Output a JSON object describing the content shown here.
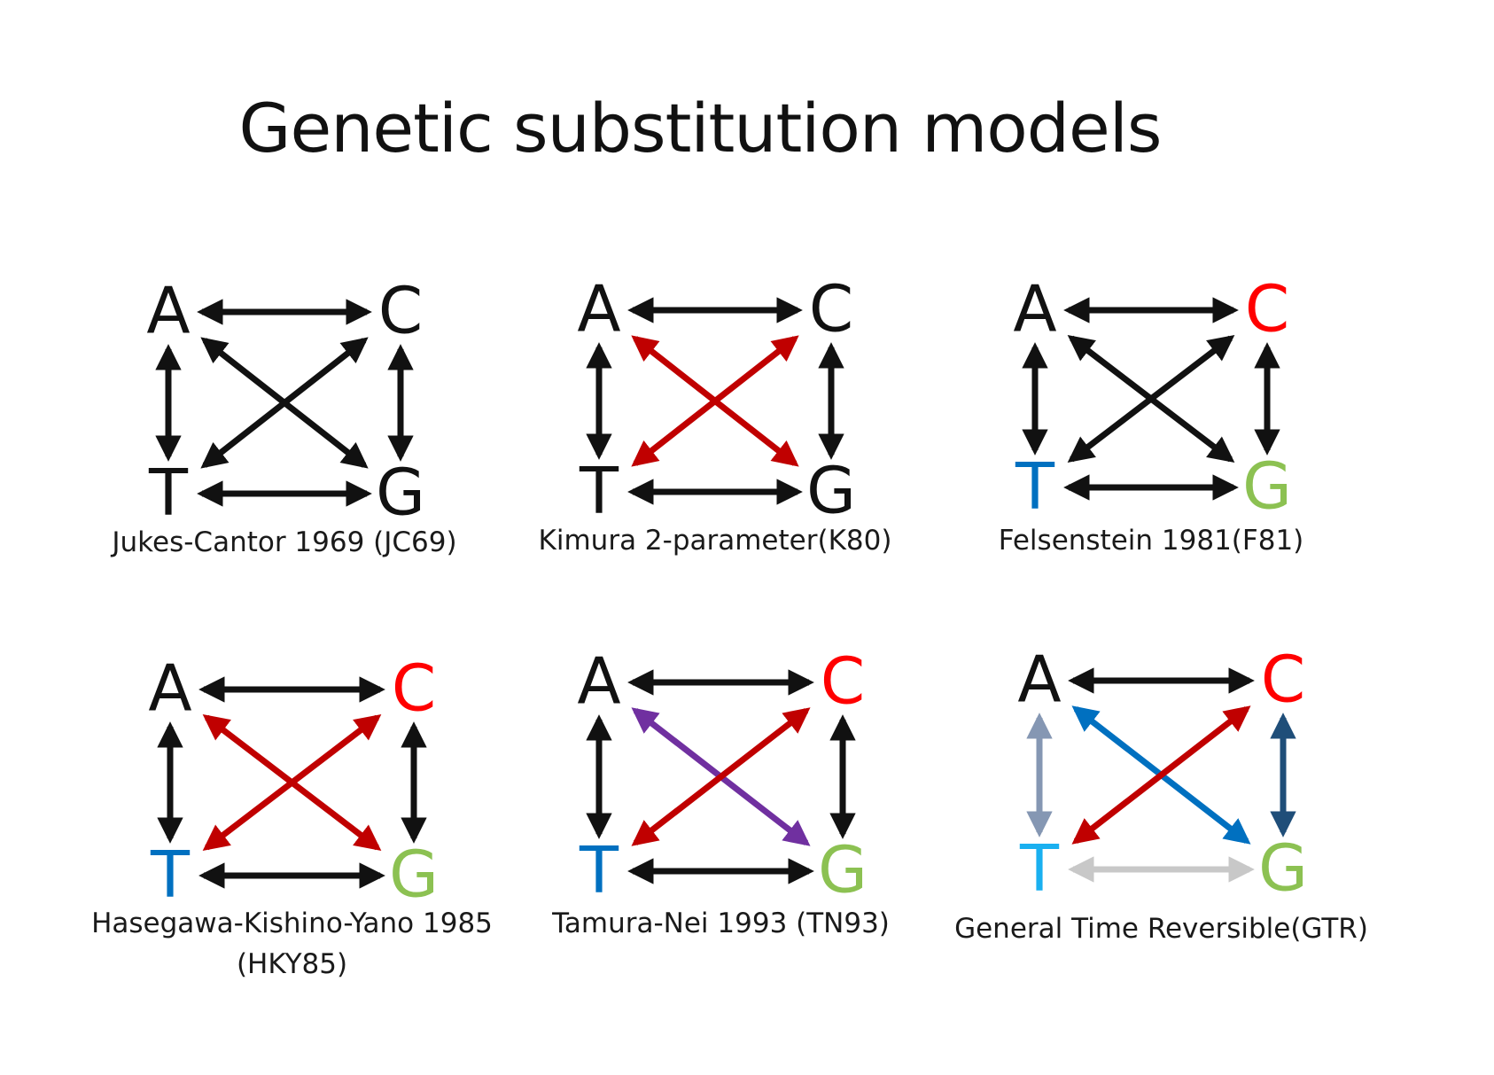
{
  "title": "Genetic substitution models",
  "colors": {
    "black": "#111111",
    "red": "#c00000",
    "bright_red": "#ff0000",
    "purple": "#7030a0",
    "blue": "#0070c0",
    "light_blue": "#1ab0f0",
    "green": "#8cc152",
    "gray_blue": "#8597b3",
    "dark_blue": "#1f4e79",
    "light_gray": "#c8c8c8"
  },
  "models": [
    {
      "id": "jc69",
      "caption": [
        "Jukes-Cantor 1969 (JC69)"
      ],
      "bases": {
        "A": "black",
        "C": "black",
        "T": "black",
        "G": "black"
      },
      "edges": {
        "AC": "black",
        "TG": "black",
        "AT": "black",
        "CG": "black",
        "AG": "black",
        "CT": "black"
      }
    },
    {
      "id": "k80",
      "caption": [
        "Kimura 2-parameter(K80)"
      ],
      "bases": {
        "A": "black",
        "C": "black",
        "T": "black",
        "G": "black"
      },
      "edges": {
        "AC": "black",
        "TG": "black",
        "AT": "black",
        "CG": "black",
        "AG": "red",
        "CT": "red"
      }
    },
    {
      "id": "f81",
      "caption": [
        "Felsenstein 1981(F81)"
      ],
      "bases": {
        "A": "black",
        "C": "bright_red",
        "T": "blue",
        "G": "green"
      },
      "edges": {
        "AC": "black",
        "TG": "black",
        "AT": "black",
        "CG": "black",
        "AG": "black",
        "CT": "black"
      }
    },
    {
      "id": "hky85",
      "caption": [
        "Hasegawa-Kishino-Yano 1985",
        "(HKY85)"
      ],
      "bases": {
        "A": "black",
        "C": "bright_red",
        "T": "blue",
        "G": "green"
      },
      "edges": {
        "AC": "black",
        "TG": "black",
        "AT": "black",
        "CG": "black",
        "AG": "red",
        "CT": "red"
      }
    },
    {
      "id": "tn93",
      "caption": [
        "Tamura-Nei 1993 (TN93)"
      ],
      "bases": {
        "A": "black",
        "C": "bright_red",
        "T": "blue",
        "G": "green"
      },
      "edges": {
        "AC": "black",
        "TG": "black",
        "AT": "black",
        "CG": "black",
        "AG": "purple",
        "CT": "red"
      }
    },
    {
      "id": "gtr",
      "caption": [
        "General Time Reversible(GTR)"
      ],
      "bases": {
        "A": "black",
        "C": "bright_red",
        "T": "light_blue",
        "G": "green"
      },
      "edges": {
        "AC": "black",
        "TG": "light_gray",
        "AT": "gray_blue",
        "CG": "dark_blue",
        "AG": "blue",
        "CT": "red"
      }
    }
  ]
}
